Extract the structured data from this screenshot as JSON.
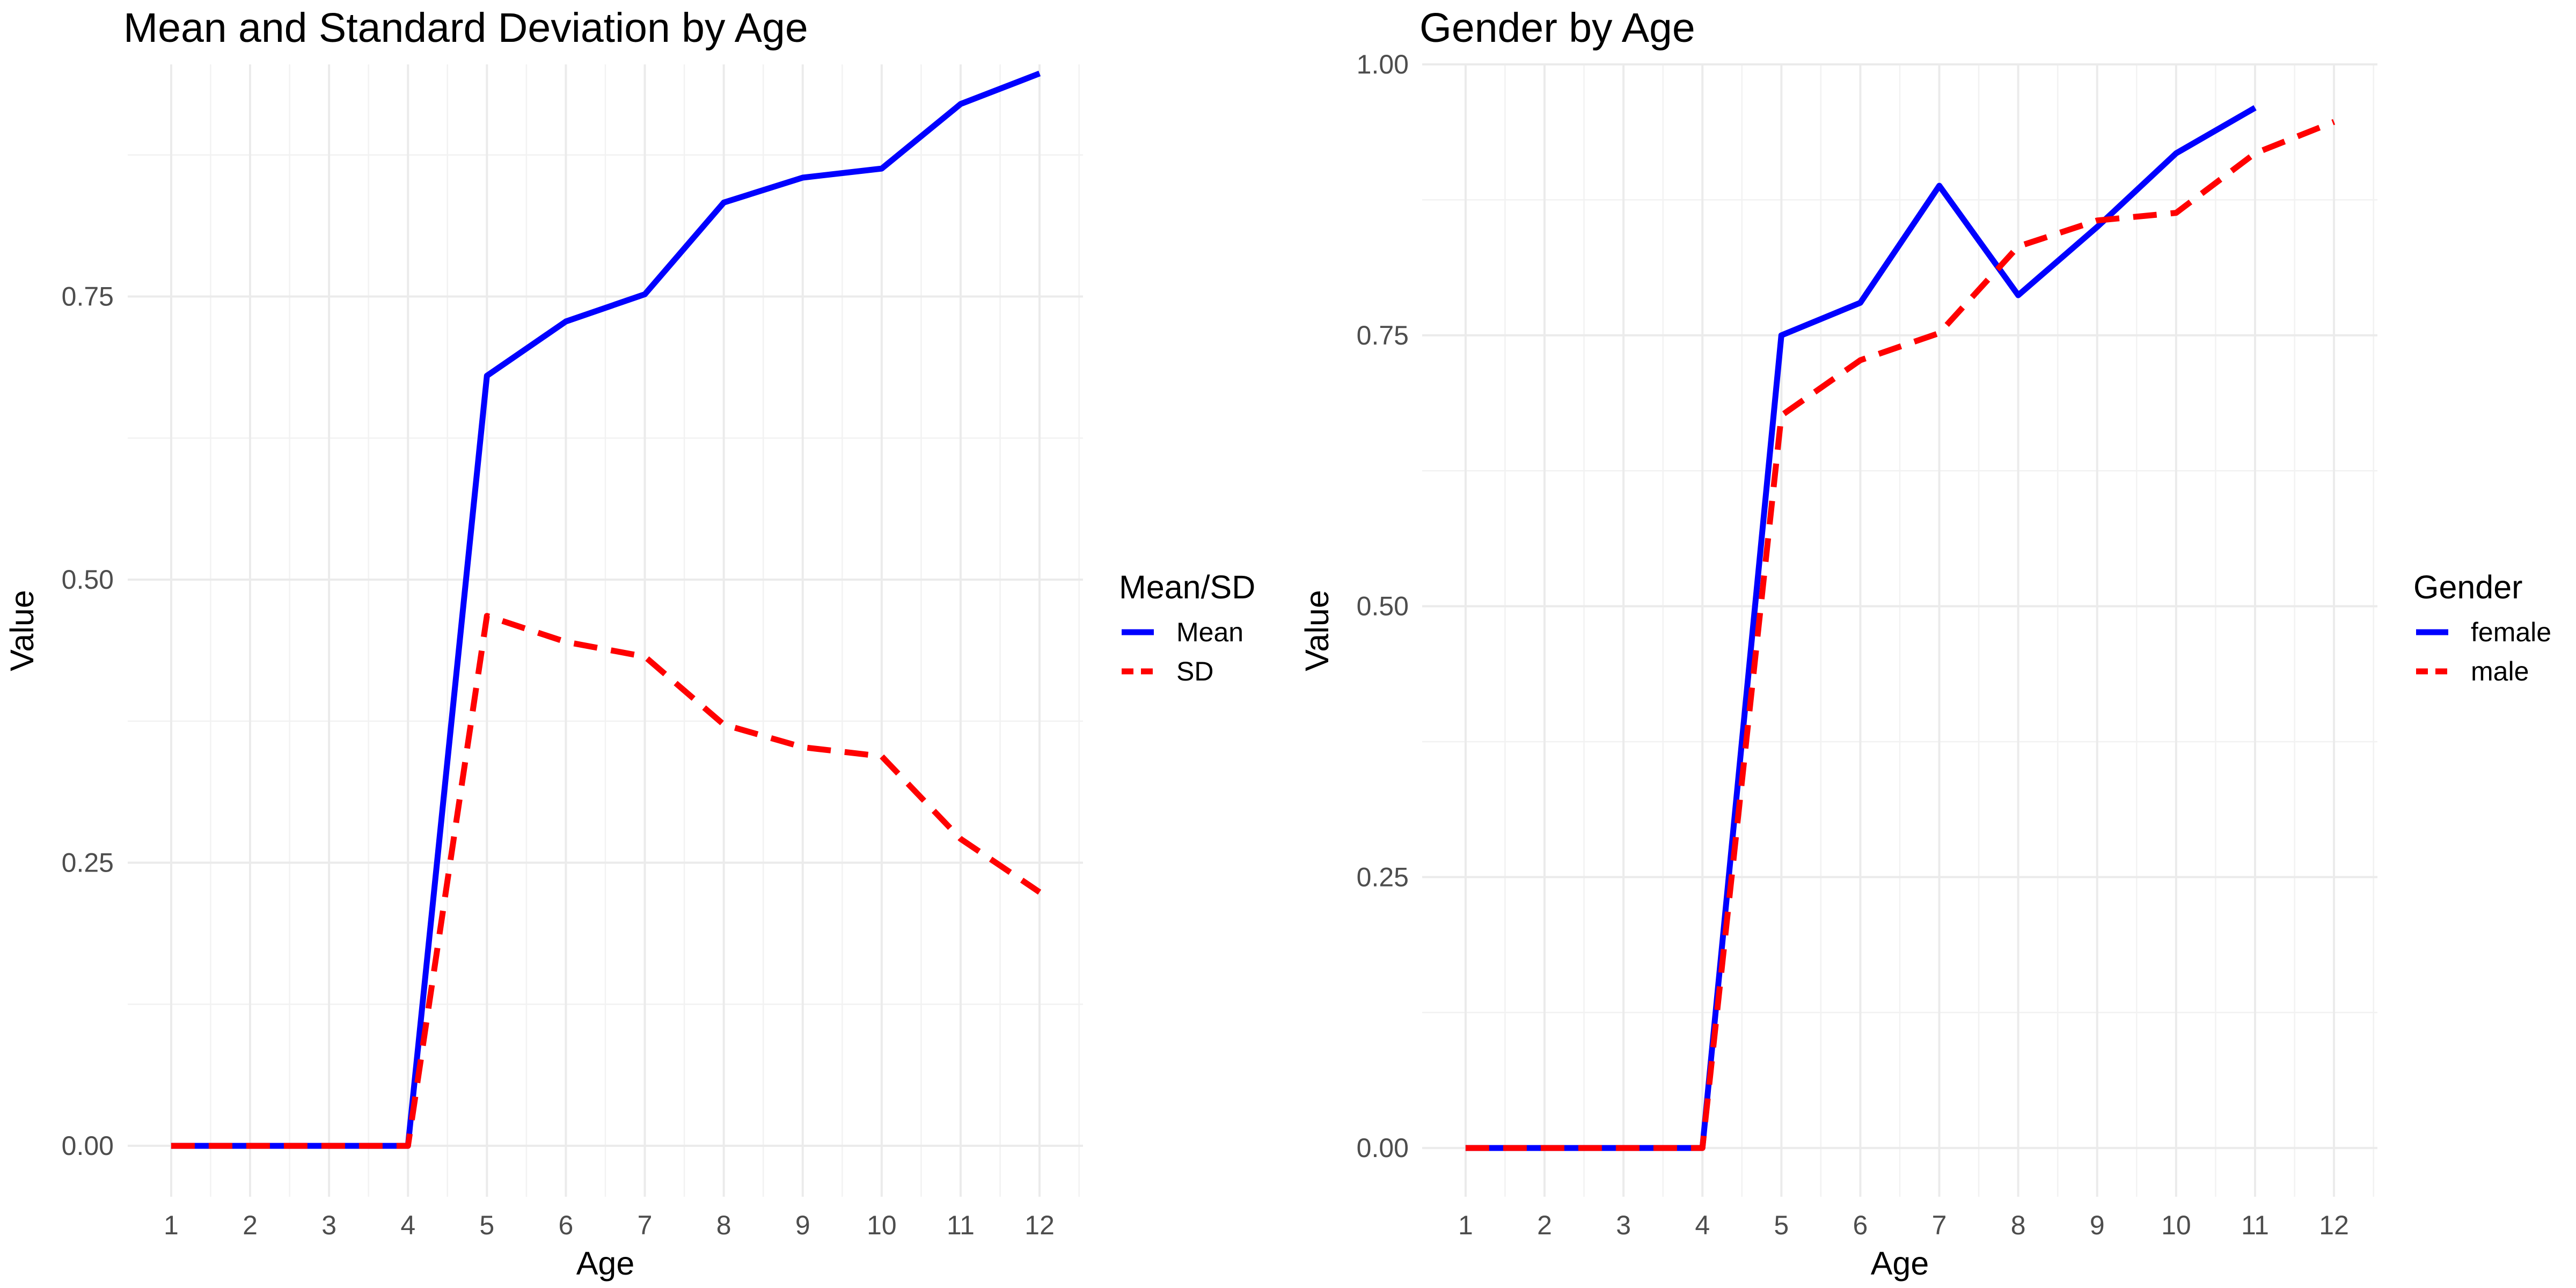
{
  "colors": {
    "blue": "#0000ff",
    "red": "#ff0000",
    "grid": "#ebebeb",
    "tick": "#4d4d4d"
  },
  "chart_data": [
    {
      "type": "line",
      "title": "Mean and Standard Deviation by Age",
      "xlabel": "Age",
      "ylabel": "Value",
      "x": [
        1,
        2,
        3,
        4,
        5,
        6,
        7,
        8,
        9,
        10,
        11,
        12
      ],
      "x_ticks": [
        "1",
        "2",
        "3",
        "4",
        "5",
        "6",
        "7",
        "8",
        "9",
        "10",
        "11",
        "12"
      ],
      "y_ticks": [
        "0.00",
        "0.25",
        "0.50",
        "0.75"
      ],
      "y_tick_values": [
        0,
        0.25,
        0.5,
        0.75
      ],
      "xlim": [
        0.45,
        12.55
      ],
      "ylim": [
        -0.045,
        0.955
      ],
      "grid": true,
      "legend": {
        "title": "Mean/SD",
        "position": "right"
      },
      "series": [
        {
          "name": "Mean",
          "color": "#0000ff",
          "dash": "solid",
          "values": [
            0,
            0,
            0,
            0,
            0.68,
            0.728,
            0.752,
            0.833,
            0.855,
            0.863,
            0.92,
            0.947
          ]
        },
        {
          "name": "SD",
          "color": "#ff0000",
          "dash": "dashed",
          "values": [
            0,
            0,
            0,
            0,
            0.468,
            0.445,
            0.432,
            0.372,
            0.352,
            0.344,
            0.271,
            0.224
          ]
        }
      ]
    },
    {
      "type": "line",
      "title": "Gender by Age",
      "xlabel": "Age",
      "ylabel": "Value",
      "x": [
        1,
        2,
        3,
        4,
        5,
        6,
        7,
        8,
        9,
        10,
        11,
        12
      ],
      "x_ticks": [
        "1",
        "2",
        "3",
        "4",
        "5",
        "6",
        "7",
        "8",
        "9",
        "10",
        "11",
        "12"
      ],
      "y_ticks": [
        "0.00",
        "0.25",
        "0.50",
        "0.75",
        "1.00"
      ],
      "y_tick_values": [
        0,
        0.25,
        0.5,
        0.75,
        1
      ],
      "xlim": [
        0.45,
        12.55
      ],
      "ylim": [
        -0.045,
        1.0
      ],
      "grid": true,
      "legend": {
        "title": "Gender",
        "position": "right"
      },
      "series": [
        {
          "name": "female",
          "color": "#0000ff",
          "dash": "solid",
          "values": [
            0,
            0,
            0,
            0,
            0.75,
            0.78,
            0.888,
            0.787,
            0.85,
            0.918,
            0.96,
            null
          ]
        },
        {
          "name": "male",
          "color": "#ff0000",
          "dash": "dashed",
          "values": [
            0,
            0,
            0,
            0,
            0.676,
            0.727,
            0.752,
            0.832,
            0.856,
            0.863,
            0.918,
            0.947
          ]
        }
      ]
    }
  ]
}
